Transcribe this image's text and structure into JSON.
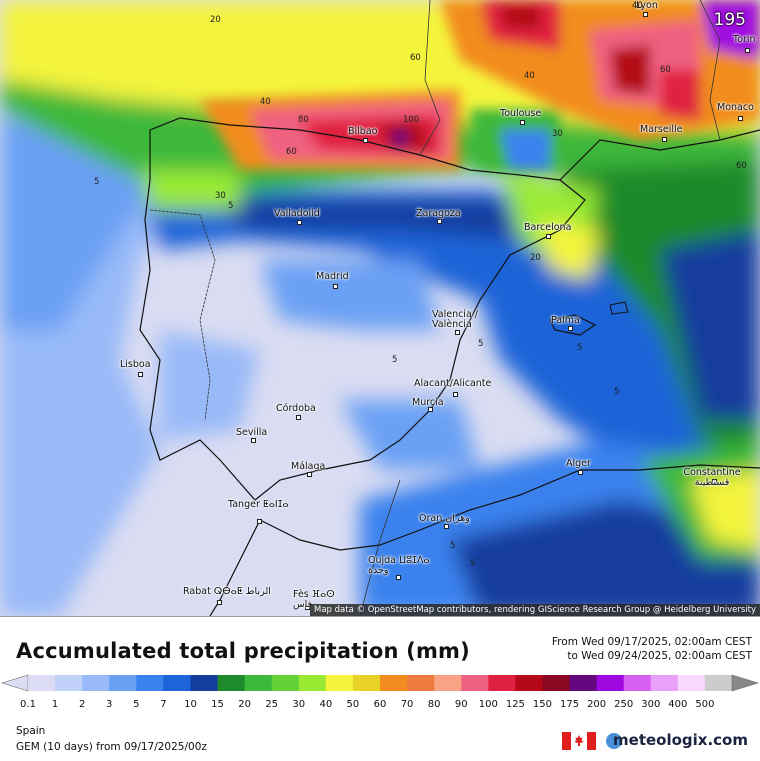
{
  "header": {
    "step_number": "195",
    "attribution": "Map data © OpenStreetMap contributors, rendering GIScience Research Group @ Heidelberg University"
  },
  "map": {
    "cities": [
      {
        "name": "Lyon"
      },
      {
        "name": "Torin"
      },
      {
        "name": "Monaco"
      },
      {
        "name": "Marseille"
      },
      {
        "name": "Toulouse"
      },
      {
        "name": "Bilbao"
      },
      {
        "name": "Valladolid"
      },
      {
        "name": "Zaragoza"
      },
      {
        "name": "Barcelona"
      },
      {
        "name": "Madrid"
      },
      {
        "name": "Valencia / València"
      },
      {
        "name": "Palma"
      },
      {
        "name": "Lisboa"
      },
      {
        "name": "Alacant/Alicante"
      },
      {
        "name": "Murcia"
      },
      {
        "name": "Córdoba"
      },
      {
        "name": "Sevilla"
      },
      {
        "name": "Málaga"
      },
      {
        "name": "Tanger ⵟⴰⵏⵊⴰ"
      },
      {
        "name": "Alger"
      },
      {
        "name": "Constantine قسنطينة"
      },
      {
        "name": "Oran وهران"
      },
      {
        "name": "Oujda ⵡⵓⵊⴷⴰ وجدة"
      },
      {
        "name": "Rabat ⵕⴱⴰⵟ الرباط"
      },
      {
        "name": "Fès ⴼⴰⵙ فاس"
      }
    ],
    "contour_labels": [
      "20",
      "60",
      "40",
      "60",
      "40",
      "80",
      "100",
      "60",
      "40",
      "30",
      "30",
      "5",
      "20",
      "5",
      "60",
      "5",
      "5",
      "5",
      "5",
      "5",
      "5"
    ]
  },
  "legend": {
    "title": "Accumulated total precipitation (mm)",
    "period_from": "From Wed 09/17/2025, 02:00am CEST",
    "period_to": "to Wed 09/24/2025, 02:00am CEST",
    "ticks": [
      "0.1",
      "1",
      "2",
      "3",
      "5",
      "7",
      "10",
      "15",
      "20",
      "25",
      "30",
      "40",
      "50",
      "60",
      "70",
      "80",
      "90",
      "100",
      "125",
      "150",
      "175",
      "200",
      "250",
      "300",
      "400",
      "500"
    ],
    "colors": [
      "#dcdcf4",
      "#c0d0f8",
      "#98baf8",
      "#6aa0f4",
      "#3a82ee",
      "#1c64d8",
      "#123e9e",
      "#1e8a2a",
      "#3cb83a",
      "#62d236",
      "#9aea34",
      "#f4f43c",
      "#e8d228",
      "#f28c1e",
      "#f07a3c",
      "#f8a484",
      "#f06080",
      "#e02040",
      "#b40818",
      "#8c0820",
      "#640880",
      "#a008e0",
      "#d860f0",
      "#e8a0f8",
      "#f8d8fc",
      "#cccccc"
    ]
  },
  "footer": {
    "region": "Spain",
    "model": "GEM (10 days) from 09/17/2025/00z",
    "brand": "meteologix.com"
  }
}
